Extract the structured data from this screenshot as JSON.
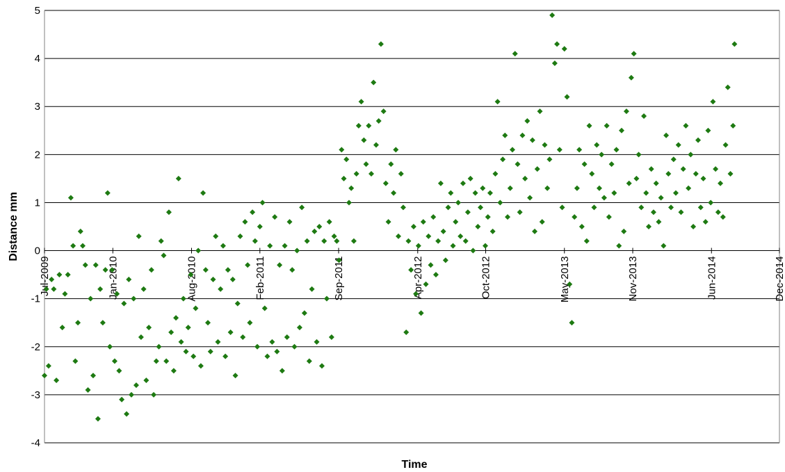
{
  "chart_data": {
    "type": "scatter",
    "title": "",
    "xlabel": "Time",
    "ylabel": "Distance mm",
    "xlim": [
      "2009-07-01",
      "2014-12-01"
    ],
    "ylim": [
      -4,
      5
    ],
    "x_ticks": [
      "Jul-2009",
      "Jan-2010",
      "Aug-2010",
      "Feb-2011",
      "Sep-2011",
      "Apr-2012",
      "Oct-2012",
      "May-2013",
      "Nov-2013",
      "Jun-2014",
      "Dec-2014"
    ],
    "y_ticks": [
      -4,
      -3,
      -2,
      -1,
      0,
      1,
      2,
      3,
      4,
      5
    ],
    "grid": "horizontal",
    "legend": "none",
    "marker": "diamond",
    "color": "#1e7a12",
    "points": [
      [
        "2009-07-01",
        -2.6
      ],
      [
        "2009-07-06",
        -0.8
      ],
      [
        "2009-07-12",
        -2.4
      ],
      [
        "2009-07-20",
        -0.6
      ],
      [
        "2009-07-26",
        -0.8
      ],
      [
        "2009-08-02",
        -2.7
      ],
      [
        "2009-08-10",
        -0.5
      ],
      [
        "2009-08-18",
        -1.6
      ],
      [
        "2009-08-25",
        -0.9
      ],
      [
        "2009-09-02",
        -0.5
      ],
      [
        "2009-09-10",
        1.1
      ],
      [
        "2009-09-16",
        0.1
      ],
      [
        "2009-09-22",
        -2.3
      ],
      [
        "2009-09-29",
        -1.5
      ],
      [
        "2009-10-06",
        0.4
      ],
      [
        "2009-10-12",
        0.1
      ],
      [
        "2009-10-19",
        -0.3
      ],
      [
        "2009-10-26",
        -2.9
      ],
      [
        "2009-11-02",
        -1.0
      ],
      [
        "2009-11-09",
        -2.6
      ],
      [
        "2009-11-16",
        -0.3
      ],
      [
        "2009-11-22",
        -3.5
      ],
      [
        "2009-11-28",
        -0.8
      ],
      [
        "2009-12-05",
        -1.5
      ],
      [
        "2009-12-12",
        -0.4
      ],
      [
        "2009-12-18",
        1.2
      ],
      [
        "2009-12-24",
        -2.0
      ],
      [
        "2009-12-30",
        -0.4
      ],
      [
        "2010-01-06",
        -2.3
      ],
      [
        "2010-01-12",
        -0.9
      ],
      [
        "2010-01-18",
        -2.5
      ],
      [
        "2010-01-25",
        -3.1
      ],
      [
        "2010-01-31",
        -1.1
      ],
      [
        "2010-02-07",
        -3.4
      ],
      [
        "2010-02-13",
        -0.6
      ],
      [
        "2010-02-20",
        -3.0
      ],
      [
        "2010-02-26",
        -1.0
      ],
      [
        "2010-03-05",
        -2.8
      ],
      [
        "2010-03-12",
        0.3
      ],
      [
        "2010-03-18",
        -1.8
      ],
      [
        "2010-03-25",
        -0.8
      ],
      [
        "2010-04-01",
        -2.7
      ],
      [
        "2010-04-08",
        -1.6
      ],
      [
        "2010-04-15",
        -0.4
      ],
      [
        "2010-04-21",
        -3.0
      ],
      [
        "2010-04-28",
        -2.3
      ],
      [
        "2010-05-05",
        -2.0
      ],
      [
        "2010-05-11",
        0.2
      ],
      [
        "2010-05-18",
        -0.1
      ],
      [
        "2010-05-25",
        -2.3
      ],
      [
        "2010-06-01",
        0.8
      ],
      [
        "2010-06-07",
        -1.7
      ],
      [
        "2010-06-14",
        -2.5
      ],
      [
        "2010-06-20",
        -1.4
      ],
      [
        "2010-06-27",
        1.5
      ],
      [
        "2010-07-04",
        -1.9
      ],
      [
        "2010-07-10",
        -1.0
      ],
      [
        "2010-07-17",
        -2.1
      ],
      [
        "2010-07-23",
        -1.6
      ],
      [
        "2010-07-30",
        -0.5
      ],
      [
        "2010-08-06",
        -2.2
      ],
      [
        "2010-08-12",
        -1.2
      ],
      [
        "2010-08-19",
        0.0
      ],
      [
        "2010-08-26",
        -2.4
      ],
      [
        "2010-09-01",
        1.2
      ],
      [
        "2010-09-08",
        -0.4
      ],
      [
        "2010-09-14",
        -1.5
      ],
      [
        "2010-09-21",
        -2.1
      ],
      [
        "2010-09-28",
        -0.6
      ],
      [
        "2010-10-05",
        0.3
      ],
      [
        "2010-10-11",
        -1.9
      ],
      [
        "2010-10-18",
        -0.8
      ],
      [
        "2010-10-25",
        0.1
      ],
      [
        "2010-10-31",
        -2.2
      ],
      [
        "2010-11-07",
        -0.4
      ],
      [
        "2010-11-14",
        -1.7
      ],
      [
        "2010-11-20",
        -0.6
      ],
      [
        "2010-11-27",
        -2.6
      ],
      [
        "2010-12-03",
        -1.1
      ],
      [
        "2010-12-10",
        0.3
      ],
      [
        "2010-12-17",
        -1.8
      ],
      [
        "2010-12-23",
        0.6
      ],
      [
        "2010-12-30",
        -0.3
      ],
      [
        "2011-01-05",
        -1.5
      ],
      [
        "2011-01-12",
        0.8
      ],
      [
        "2011-01-19",
        0.2
      ],
      [
        "2011-01-25",
        -2.0
      ],
      [
        "2011-02-01",
        0.5
      ],
      [
        "2011-02-08",
        1.0
      ],
      [
        "2011-02-14",
        -1.2
      ],
      [
        "2011-02-21",
        -2.2
      ],
      [
        "2011-02-28",
        0.1
      ],
      [
        "2011-03-06",
        -1.9
      ],
      [
        "2011-03-13",
        0.7
      ],
      [
        "2011-03-19",
        -2.1
      ],
      [
        "2011-03-26",
        -0.3
      ],
      [
        "2011-04-02",
        -2.5
      ],
      [
        "2011-04-09",
        0.1
      ],
      [
        "2011-04-15",
        -1.8
      ],
      [
        "2011-04-22",
        0.6
      ],
      [
        "2011-04-29",
        -0.4
      ],
      [
        "2011-05-05",
        -2.0
      ],
      [
        "2011-05-12",
        0.0
      ],
      [
        "2011-05-19",
        -1.6
      ],
      [
        "2011-05-25",
        0.9
      ],
      [
        "2011-06-01",
        -1.3
      ],
      [
        "2011-06-08",
        0.2
      ],
      [
        "2011-06-14",
        -2.3
      ],
      [
        "2011-06-21",
        -0.8
      ],
      [
        "2011-06-28",
        0.4
      ],
      [
        "2011-07-04",
        -1.9
      ],
      [
        "2011-07-11",
        0.5
      ],
      [
        "2011-07-18",
        -2.4
      ],
      [
        "2011-07-24",
        0.2
      ],
      [
        "2011-07-31",
        -1.0
      ],
      [
        "2011-08-07",
        0.6
      ],
      [
        "2011-08-13",
        -1.8
      ],
      [
        "2011-08-20",
        0.3
      ],
      [
        "2011-08-27",
        0.2
      ],
      [
        "2011-09-02",
        -0.2
      ],
      [
        "2011-09-09",
        2.1
      ],
      [
        "2011-09-15",
        1.5
      ],
      [
        "2011-09-22",
        1.9
      ],
      [
        "2011-09-29",
        1.0
      ],
      [
        "2011-10-05",
        1.3
      ],
      [
        "2011-10-12",
        0.2
      ],
      [
        "2011-10-19",
        1.6
      ],
      [
        "2011-10-25",
        2.6
      ],
      [
        "2011-11-01",
        3.1
      ],
      [
        "2011-11-08",
        2.3
      ],
      [
        "2011-11-14",
        1.8
      ],
      [
        "2011-11-21",
        2.6
      ],
      [
        "2011-11-28",
        1.6
      ],
      [
        "2011-12-04",
        3.5
      ],
      [
        "2011-12-11",
        2.2
      ],
      [
        "2011-12-18",
        2.7
      ],
      [
        "2011-12-24",
        4.3
      ],
      [
        "2011-12-31",
        2.9
      ],
      [
        "2012-01-06",
        1.4
      ],
      [
        "2012-01-13",
        0.6
      ],
      [
        "2012-01-20",
        1.8
      ],
      [
        "2012-01-27",
        1.2
      ],
      [
        "2012-02-02",
        2.1
      ],
      [
        "2012-02-09",
        0.3
      ],
      [
        "2012-02-16",
        1.6
      ],
      [
        "2012-02-22",
        0.9
      ],
      [
        "2012-03-01",
        -1.7
      ],
      [
        "2012-03-07",
        0.2
      ],
      [
        "2012-03-14",
        -0.4
      ],
      [
        "2012-03-21",
        0.5
      ],
      [
        "2012-03-27",
        -0.9
      ],
      [
        "2012-04-03",
        0.1
      ],
      [
        "2012-04-10",
        -1.3
      ],
      [
        "2012-04-16",
        0.6
      ],
      [
        "2012-04-23",
        -0.7
      ],
      [
        "2012-04-30",
        0.3
      ],
      [
        "2012-05-06",
        -0.3
      ],
      [
        "2012-05-13",
        0.7
      ],
      [
        "2012-05-20",
        -0.5
      ],
      [
        "2012-05-26",
        0.2
      ],
      [
        "2012-06-02",
        1.4
      ],
      [
        "2012-06-09",
        0.4
      ],
      [
        "2012-06-15",
        -0.2
      ],
      [
        "2012-06-22",
        0.9
      ],
      [
        "2012-06-29",
        1.2
      ],
      [
        "2012-07-05",
        0.1
      ],
      [
        "2012-07-12",
        0.6
      ],
      [
        "2012-07-19",
        1.0
      ],
      [
        "2012-07-25",
        0.3
      ],
      [
        "2012-08-01",
        1.4
      ],
      [
        "2012-08-08",
        0.2
      ],
      [
        "2012-08-14",
        0.8
      ],
      [
        "2012-08-21",
        1.5
      ],
      [
        "2012-08-28",
        0.0
      ],
      [
        "2012-09-03",
        1.2
      ],
      [
        "2012-09-10",
        0.5
      ],
      [
        "2012-09-17",
        0.9
      ],
      [
        "2012-09-23",
        1.3
      ],
      [
        "2012-09-30",
        0.1
      ],
      [
        "2012-10-07",
        0.7
      ],
      [
        "2012-10-13",
        1.2
      ],
      [
        "2012-10-20",
        0.4
      ],
      [
        "2012-10-27",
        1.6
      ],
      [
        "2012-11-02",
        3.1
      ],
      [
        "2012-11-09",
        1.0
      ],
      [
        "2012-11-16",
        1.9
      ],
      [
        "2012-11-22",
        2.4
      ],
      [
        "2012-11-29",
        0.7
      ],
      [
        "2012-12-06",
        1.3
      ],
      [
        "2012-12-12",
        2.1
      ],
      [
        "2012-12-19",
        4.1
      ],
      [
        "2012-12-26",
        1.8
      ],
      [
        "2013-01-01",
        0.8
      ],
      [
        "2013-01-08",
        2.4
      ],
      [
        "2013-01-15",
        1.5
      ],
      [
        "2013-01-21",
        2.7
      ],
      [
        "2013-01-28",
        1.1
      ],
      [
        "2013-02-04",
        2.3
      ],
      [
        "2013-02-10",
        0.4
      ],
      [
        "2013-02-17",
        1.7
      ],
      [
        "2013-02-24",
        2.9
      ],
      [
        "2013-03-02",
        0.6
      ],
      [
        "2013-03-09",
        2.2
      ],
      [
        "2013-03-16",
        1.3
      ],
      [
        "2013-03-22",
        1.9
      ],
      [
        "2013-03-29",
        4.9
      ],
      [
        "2013-04-05",
        3.9
      ],
      [
        "2013-04-11",
        4.3
      ],
      [
        "2013-04-18",
        2.1
      ],
      [
        "2013-04-25",
        0.9
      ],
      [
        "2013-05-01",
        4.2
      ],
      [
        "2013-05-08",
        3.2
      ],
      [
        "2013-05-15",
        -0.7
      ],
      [
        "2013-05-21",
        -1.5
      ],
      [
        "2013-05-28",
        0.7
      ],
      [
        "2013-06-04",
        1.3
      ],
      [
        "2013-06-10",
        2.1
      ],
      [
        "2013-06-17",
        0.5
      ],
      [
        "2013-06-24",
        1.8
      ],
      [
        "2013-06-30",
        0.2
      ],
      [
        "2013-07-07",
        2.6
      ],
      [
        "2013-07-14",
        1.6
      ],
      [
        "2013-07-20",
        0.9
      ],
      [
        "2013-07-27",
        2.2
      ],
      [
        "2013-08-03",
        1.3
      ],
      [
        "2013-08-09",
        2.0
      ],
      [
        "2013-08-16",
        1.1
      ],
      [
        "2013-08-23",
        2.6
      ],
      [
        "2013-08-29",
        0.7
      ],
      [
        "2013-09-05",
        1.8
      ],
      [
        "2013-09-12",
        1.2
      ],
      [
        "2013-09-18",
        2.1
      ],
      [
        "2013-09-25",
        0.1
      ],
      [
        "2013-10-02",
        2.5
      ],
      [
        "2013-10-08",
        0.4
      ],
      [
        "2013-10-15",
        2.9
      ],
      [
        "2013-10-22",
        1.4
      ],
      [
        "2013-10-28",
        3.6
      ],
      [
        "2013-11-04",
        4.1
      ],
      [
        "2013-11-11",
        1.5
      ],
      [
        "2013-11-17",
        2.0
      ],
      [
        "2013-11-24",
        0.9
      ],
      [
        "2013-12-01",
        2.8
      ],
      [
        "2013-12-07",
        1.2
      ],
      [
        "2013-12-14",
        0.5
      ],
      [
        "2013-12-21",
        1.7
      ],
      [
        "2013-12-27",
        0.8
      ],
      [
        "2014-01-03",
        1.4
      ],
      [
        "2014-01-10",
        0.6
      ],
      [
        "2014-01-16",
        1.1
      ],
      [
        "2014-01-23",
        0.1
      ],
      [
        "2014-01-30",
        2.4
      ],
      [
        "2014-02-05",
        1.6
      ],
      [
        "2014-02-12",
        0.9
      ],
      [
        "2014-02-19",
        1.9
      ],
      [
        "2014-02-25",
        1.2
      ],
      [
        "2014-03-04",
        2.2
      ],
      [
        "2014-03-11",
        0.8
      ],
      [
        "2014-03-17",
        1.7
      ],
      [
        "2014-03-24",
        2.6
      ],
      [
        "2014-03-31",
        1.3
      ],
      [
        "2014-04-06",
        2.0
      ],
      [
        "2014-04-13",
        0.5
      ],
      [
        "2014-04-20",
        1.6
      ],
      [
        "2014-04-26",
        2.3
      ],
      [
        "2014-05-03",
        0.9
      ],
      [
        "2014-05-10",
        1.5
      ],
      [
        "2014-05-16",
        0.6
      ],
      [
        "2014-05-23",
        2.5
      ],
      [
        "2014-05-30",
        1.0
      ],
      [
        "2014-06-05",
        3.1
      ],
      [
        "2014-06-12",
        1.7
      ],
      [
        "2014-06-19",
        0.8
      ],
      [
        "2014-06-25",
        1.4
      ],
      [
        "2014-07-02",
        0.7
      ],
      [
        "2014-07-09",
        2.2
      ],
      [
        "2014-07-15",
        3.4
      ],
      [
        "2014-07-22",
        1.6
      ],
      [
        "2014-07-29",
        2.6
      ],
      [
        "2014-08-02",
        4.3
      ]
    ]
  }
}
